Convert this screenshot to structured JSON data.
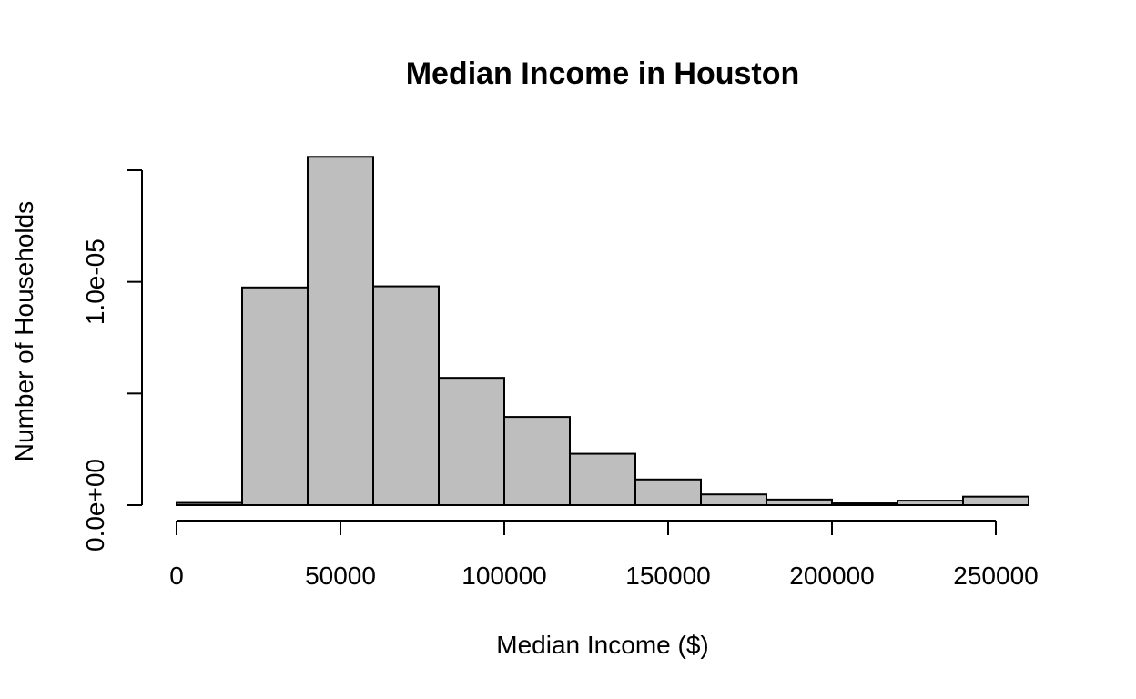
{
  "chart_data": {
    "type": "histogram",
    "title": "Median Income in Houston",
    "xlabel": "Median Income ($)",
    "ylabel": "Number of Households",
    "bin_edges": [
      0,
      20000,
      40000,
      60000,
      80000,
      100000,
      120000,
      140000,
      160000,
      180000,
      200000,
      220000,
      240000,
      260000
    ],
    "values": [
      1e-07,
      9.75e-06,
      1.56e-05,
      9.8e-06,
      5.7e-06,
      3.95e-06,
      2.3e-06,
      1.15e-06,
      4.8e-07,
      2.5e-07,
      8e-08,
      2e-07,
      3.8e-07
    ],
    "xlim": [
      0,
      260000
    ],
    "ylim": [
      0,
      1.5e-05
    ],
    "x_ticks": [
      0,
      50000,
      100000,
      150000,
      200000,
      250000
    ],
    "x_tick_labels": [
      "0",
      "50000",
      "100000",
      "150000",
      "200000",
      "250000"
    ],
    "y_ticks": [
      0,
      5e-06,
      1e-05,
      1.5e-05
    ],
    "y_tick_labels": [
      "0.0e+00",
      "",
      "1.0e-05",
      ""
    ],
    "bar_fill": "#bebebe",
    "bar_stroke": "#000000"
  }
}
